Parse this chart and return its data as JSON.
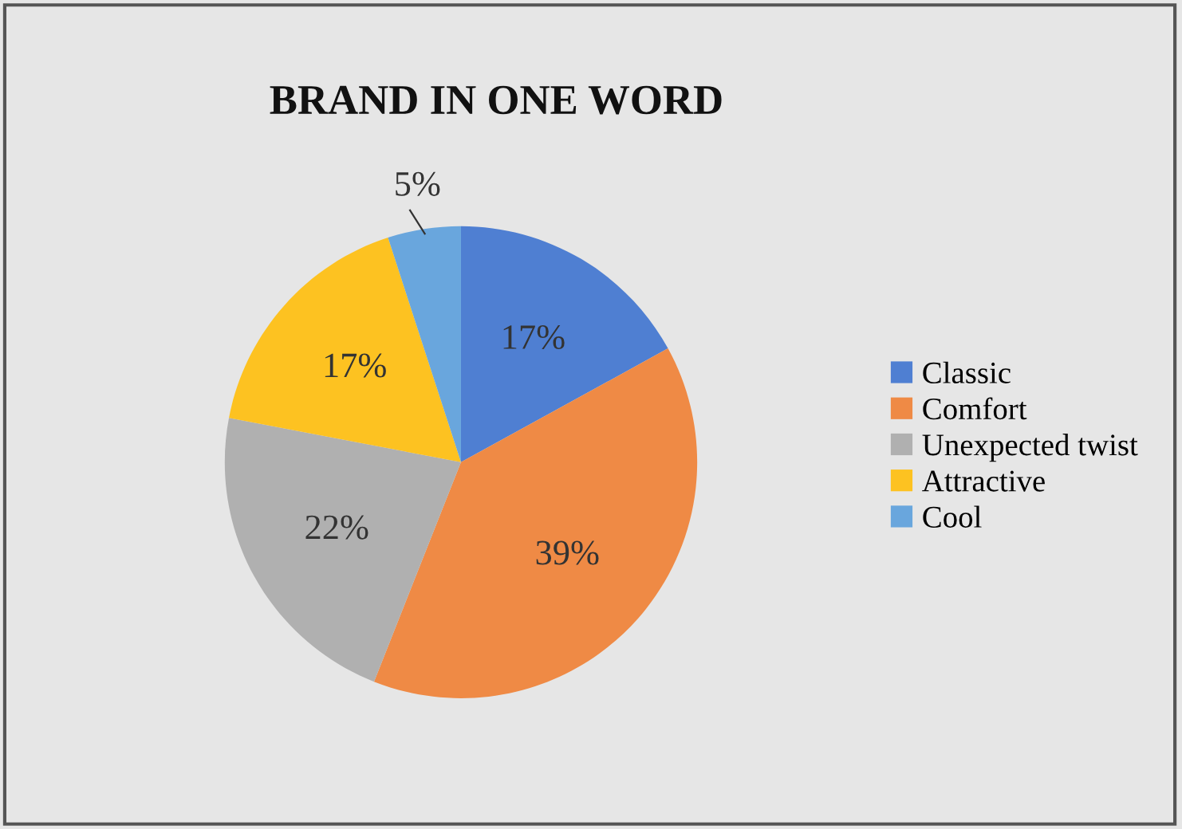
{
  "chart_data": {
    "type": "pie",
    "title": "BRAND IN ONE WORD",
    "categories": [
      "Classic",
      "Comfort",
      "Unexpected twist",
      "Attractive",
      "Cool"
    ],
    "values": [
      17,
      39,
      22,
      17,
      5
    ],
    "colors": [
      "#4f7fd2",
      "#ef8a45",
      "#b0b0b0",
      "#fdc221",
      "#69a6dd"
    ],
    "value_labels": [
      "17%",
      "39%",
      "22%",
      "17%",
      "5%"
    ],
    "legend": "right"
  }
}
